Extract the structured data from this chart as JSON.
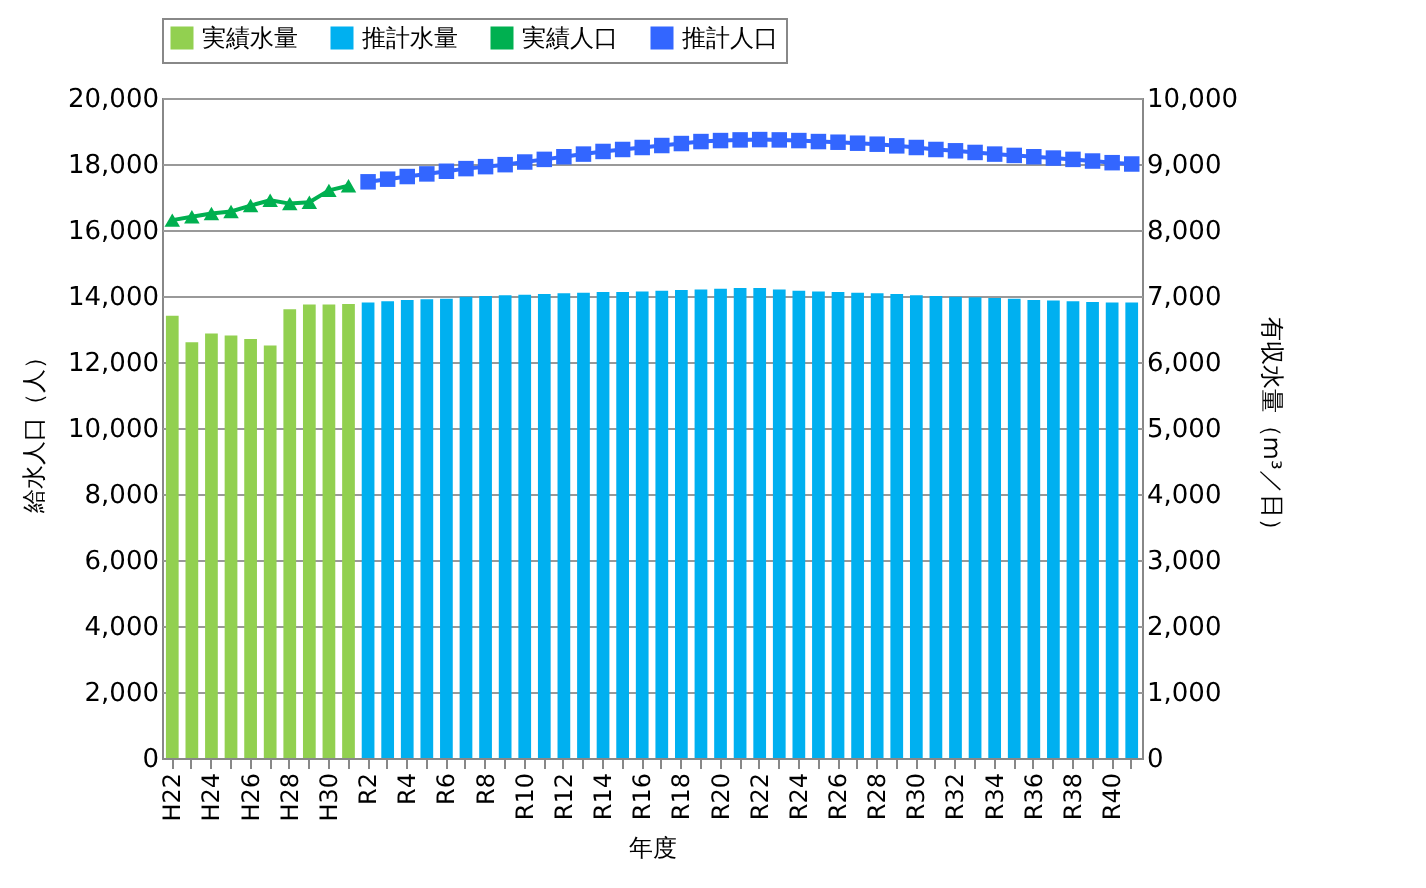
{
  "chart_data": {
    "type": "bar",
    "xlabel": "年度",
    "ylabel": "給水人口（人）",
    "y2label": "有収水量（m³／日）",
    "categories": [
      "H22",
      null,
      "H24",
      null,
      "H26",
      null,
      "H28",
      null,
      "H30",
      null,
      "R2",
      null,
      "R4",
      null,
      "R6",
      null,
      "R8",
      null,
      "R10",
      null,
      "R12",
      null,
      "R14",
      null,
      "R16",
      null,
      "R18",
      null,
      "R20",
      null,
      "R22",
      null,
      "R24",
      null,
      "R26",
      null,
      "R28",
      null,
      "R30",
      null,
      "R32",
      null,
      "R34",
      null,
      "R36",
      null,
      "R38",
      null,
      "R40",
      null
    ],
    "series": [
      {
        "name": "実績水量",
        "axis": "y2",
        "color": "#92d050",
        "values": [
          6700,
          6300,
          6430,
          6400,
          6350,
          6250,
          6800,
          6870,
          6870,
          6880,
          null,
          null,
          null,
          null,
          null,
          null,
          null,
          null,
          null,
          null,
          null,
          null,
          null,
          null,
          null,
          null,
          null,
          null,
          null,
          null,
          null,
          null,
          null,
          null,
          null,
          null,
          null,
          null,
          null,
          null,
          null,
          null,
          null,
          null,
          null,
          null,
          null,
          null,
          null,
          null
        ]
      },
      {
        "name": "推計水量",
        "axis": "y2",
        "color": "#00b0f0",
        "values": [
          null,
          null,
          null,
          null,
          null,
          null,
          null,
          null,
          null,
          null,
          6900,
          6920,
          6940,
          6950,
          6960,
          6990,
          7000,
          7010,
          7020,
          7030,
          7040,
          7050,
          7060,
          7060,
          7070,
          7080,
          7090,
          7100,
          7110,
          7120,
          7120,
          7100,
          7080,
          7070,
          7060,
          7050,
          7040,
          7030,
          7010,
          7000,
          6990,
          6980,
          6970,
          6960,
          6940,
          6930,
          6920,
          6910,
          6900,
          6900
        ]
      },
      {
        "name": "実績人口",
        "type": "line",
        "marker": "triangle",
        "color": "#00b050",
        "values": [
          16300,
          16400,
          16500,
          16560,
          16740,
          16900,
          16800,
          16840,
          17200,
          17340,
          null,
          null,
          null,
          null,
          null,
          null,
          null,
          null,
          null,
          null,
          null,
          null,
          null,
          null,
          null,
          null,
          null,
          null,
          null,
          null,
          null,
          null,
          null,
          null,
          null,
          null,
          null,
          null,
          null,
          null,
          null,
          null,
          null,
          null,
          null,
          null,
          null,
          null,
          null,
          null
        ]
      },
      {
        "name": "推計人口",
        "type": "line",
        "marker": "square",
        "color": "#3366ff",
        "values": [
          null,
          null,
          null,
          null,
          null,
          null,
          null,
          null,
          null,
          null,
          17460,
          17540,
          17620,
          17700,
          17780,
          17860,
          17920,
          17980,
          18060,
          18140,
          18220,
          18300,
          18380,
          18440,
          18500,
          18560,
          18620,
          18680,
          18710,
          18730,
          18740,
          18730,
          18710,
          18680,
          18660,
          18630,
          18600,
          18550,
          18500,
          18440,
          18400,
          18350,
          18300,
          18260,
          18220,
          18180,
          18140,
          18090,
          18040,
          18000
        ]
      }
    ],
    "ylim": [
      0,
      20000
    ],
    "yticks": [
      0,
      {
        "value": 2000,
        "label": "2,000"
      },
      {
        "value": 4000,
        "label": "4,000"
      },
      {
        "value": 6000,
        "label": "6,000"
      },
      {
        "value": 8000,
        "label": "8,000"
      },
      {
        "value": 10000,
        "label": "10,000"
      },
      {
        "value": 12000,
        "label": "12,000"
      },
      {
        "value": 14000,
        "label": "14,000"
      },
      {
        "value": 16000,
        "label": "16,000"
      },
      {
        "value": 18000,
        "label": "18,000"
      },
      {
        "value": 20000,
        "label": "20,000"
      }
    ],
    "y2lim": [
      0,
      10000
    ],
    "y2ticks": [
      0,
      {
        "value": 1000,
        "label": "1,000"
      },
      {
        "value": 2000,
        "label": "2,000"
      },
      {
        "value": 3000,
        "label": "3,000"
      },
      {
        "value": 4000,
        "label": "4,000"
      },
      {
        "value": 5000,
        "label": "5,000"
      },
      {
        "value": 6000,
        "label": "6,000"
      },
      {
        "value": 7000,
        "label": "7,000"
      },
      {
        "value": 8000,
        "label": "8,000"
      },
      {
        "value": 9000,
        "label": "9,000"
      },
      {
        "value": 10000,
        "label": "10,000"
      }
    ],
    "grid": "y",
    "legend": "top"
  }
}
